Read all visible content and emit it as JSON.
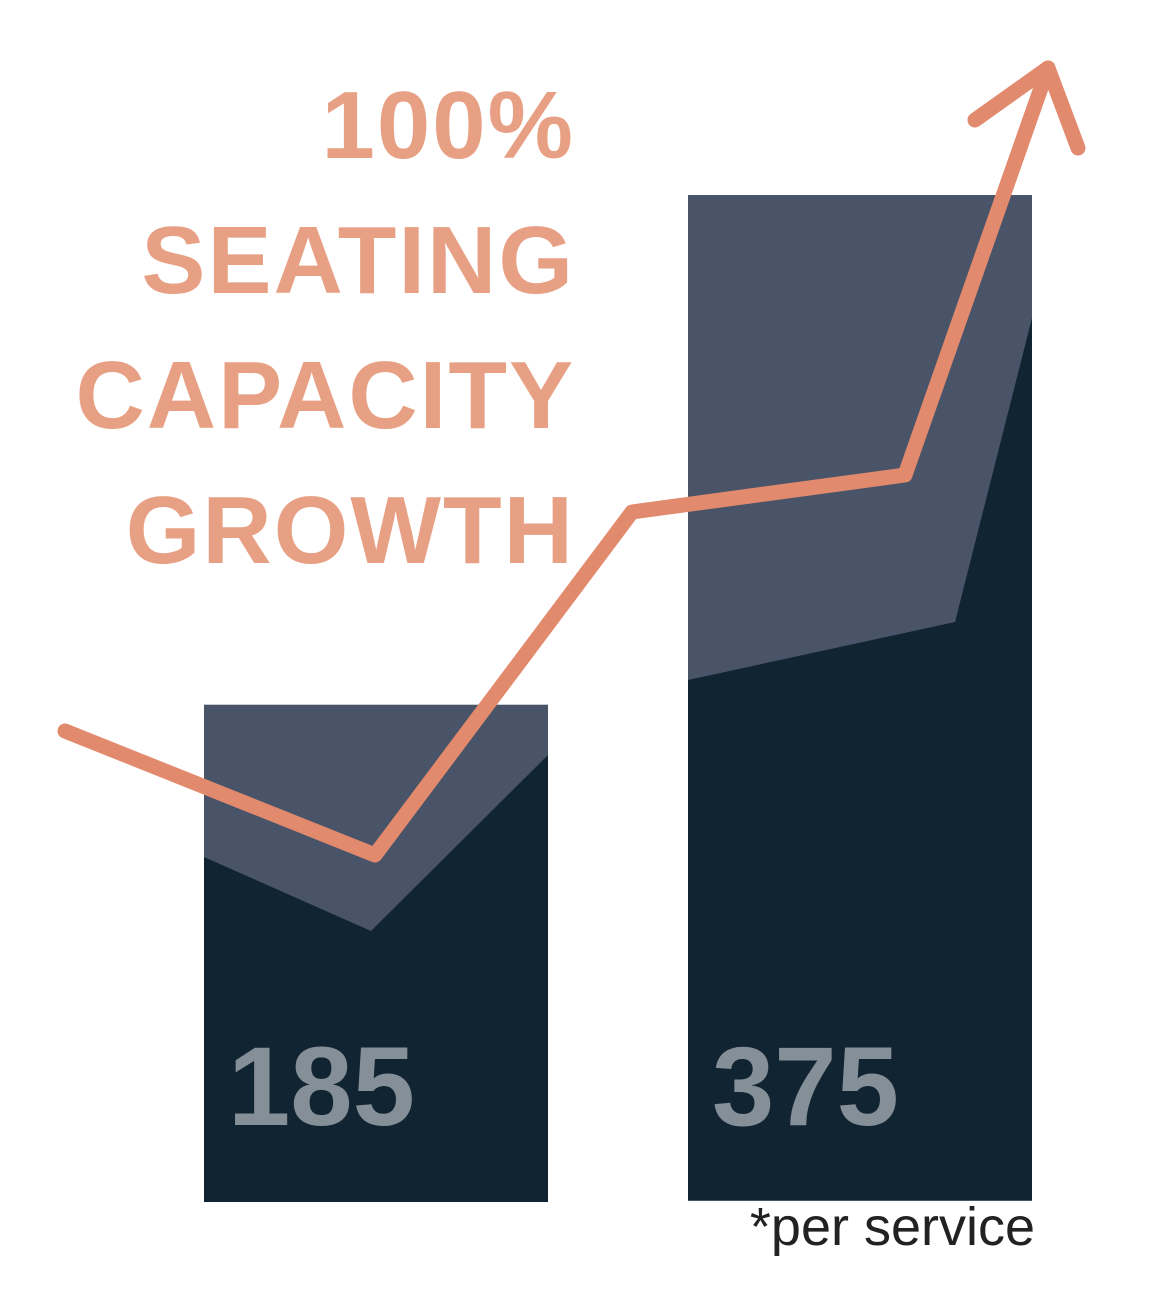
{
  "chart_data": {
    "type": "bar",
    "title": "100% SEATING CAPACITY GROWTH",
    "values": [
      185,
      375
    ],
    "color": "#4a5468",
    "note": "*per service"
  }
}
